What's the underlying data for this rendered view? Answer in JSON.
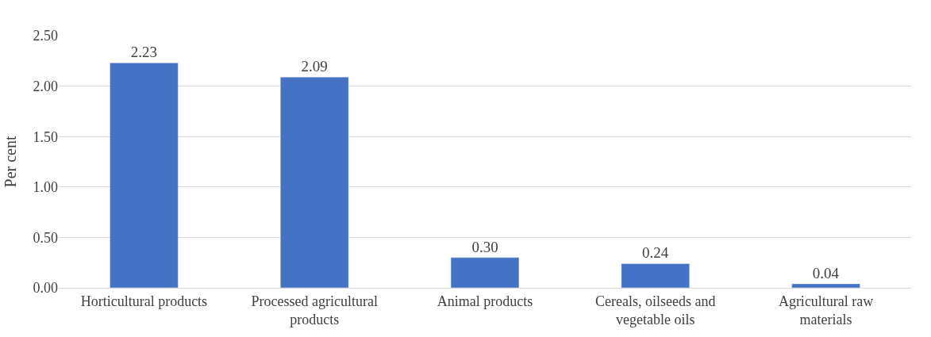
{
  "chart_data": {
    "type": "bar",
    "ylabel": "Per cent",
    "categories": [
      "Horticultural products",
      "Processed agricultural products",
      "Animal products",
      "Cereals, oilseeds and vegetable oils",
      "Agricultural raw materials"
    ],
    "values": [
      2.23,
      2.09,
      0.3,
      0.24,
      0.04
    ],
    "value_labels": [
      "2.23",
      "2.09",
      "0.30",
      "0.24",
      "0.04"
    ],
    "color": "#4472c4",
    "ylim": [
      0,
      2.5
    ],
    "yticks": [
      {
        "value": 0,
        "label": "0.00"
      },
      {
        "value": 0.5,
        "label": "0.50"
      },
      {
        "value": 1,
        "label": "1.00"
      },
      {
        "value": 1.5,
        "label": "1.50"
      },
      {
        "value": 2,
        "label": "2.00"
      },
      {
        "value": 2.5,
        "label": "2.50"
      }
    ],
    "grid": "y",
    "legend": false
  }
}
